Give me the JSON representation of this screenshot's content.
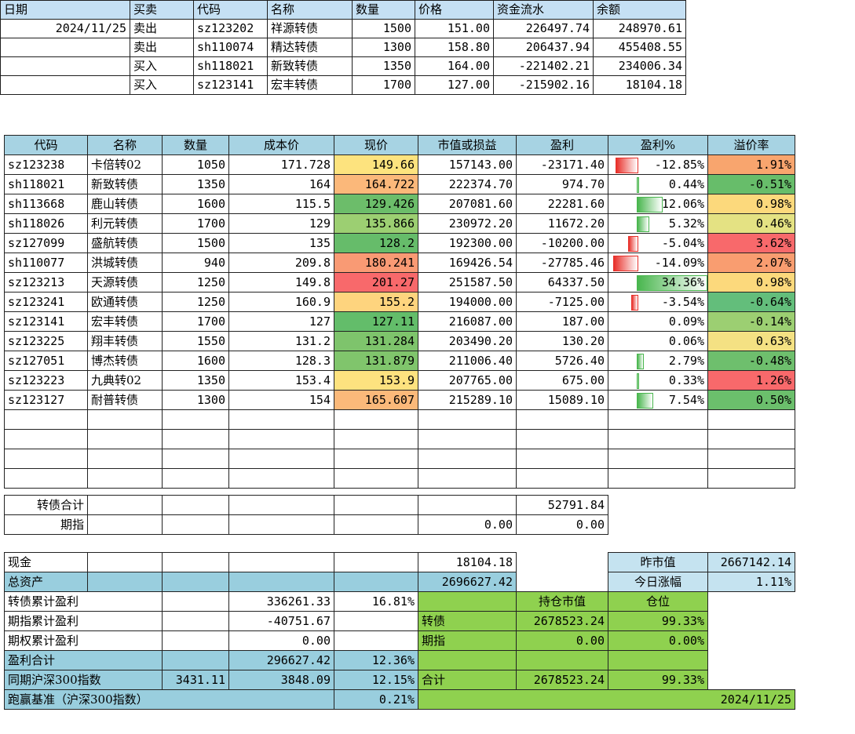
{
  "trade": {
    "headers": [
      "日期",
      "买卖",
      "代码",
      "名称",
      "数量",
      "价格",
      "资金流水",
      "余额"
    ],
    "rows": [
      {
        "date": "2024/11/25",
        "side": "卖出",
        "code": "sz123202",
        "name": "祥源转债",
        "qty": "1500",
        "price": "151.00",
        "flow": "226497.74",
        "balance": "248970.61"
      },
      {
        "date": "",
        "side": "卖出",
        "code": "sh110074",
        "name": "精达转债",
        "qty": "1300",
        "price": "158.80",
        "flow": "206437.94",
        "balance": "455408.55"
      },
      {
        "date": "",
        "side": "买入",
        "code": "sh118021",
        "name": "新致转债",
        "qty": "1350",
        "price": "164.00",
        "flow": "-221402.21",
        "balance": "234006.34"
      },
      {
        "date": "",
        "side": "买入",
        "code": "sz123141",
        "name": "宏丰转债",
        "qty": "1700",
        "price": "127.00",
        "flow": "-215902.16",
        "balance": "18104.18"
      }
    ]
  },
  "holdings": {
    "headers": [
      "代码",
      "名称",
      "数量",
      "成本价",
      "现价",
      "市值或损益",
      "盈利",
      "盈利%",
      "溢价率"
    ],
    "rows": [
      {
        "code": "sz123238",
        "name": "卡倍转02",
        "qty": "1050",
        "cost": "171.728",
        "price": "149.66",
        "mv": "157143.00",
        "profit": "-23171.40",
        "pct": "-12.85%",
        "pct_value": -12.85,
        "prem": "1.91%",
        "price_color": "#fde37e",
        "prem_color": "#f8a56e"
      },
      {
        "code": "sh118021",
        "name": "新致转债",
        "qty": "1350",
        "cost": "164",
        "price": "164.722",
        "mv": "222374.70",
        "profit": "974.70",
        "pct": "0.44%",
        "pct_value": 0.44,
        "prem": "-0.51%",
        "price_color": "#fbb87a",
        "prem_color": "#67bd6a"
      },
      {
        "code": "sh113668",
        "name": "鹿山转债",
        "qty": "1600",
        "cost": "115.5",
        "price": "129.426",
        "mv": "207081.60",
        "profit": "22281.60",
        "pct": "12.06%",
        "pct_value": 12.06,
        "prem": "0.98%",
        "price_color": "#6cbd6a",
        "prem_color": "#fcd97c"
      },
      {
        "code": "sh118026",
        "name": "利元转债",
        "qty": "1700",
        "cost": "129",
        "price": "135.866",
        "mv": "230972.20",
        "profit": "11672.20",
        "pct": "5.32%",
        "pct_value": 5.32,
        "prem": "0.46%",
        "price_color": "#9ccf72",
        "prem_color": "#e4e283"
      },
      {
        "code": "sz127099",
        "name": "盛航转债",
        "qty": "1500",
        "cost": "135",
        "price": "128.2",
        "mv": "192300.00",
        "profit": "-10200.00",
        "pct": "-5.04%",
        "pct_value": -5.04,
        "prem": "3.62%",
        "price_color": "#66bc6a",
        "prem_color": "#f8696b"
      },
      {
        "code": "sh110077",
        "name": "洪城转债",
        "qty": "940",
        "cost": "209.8",
        "price": "180.241",
        "mv": "169426.54",
        "profit": "-27785.46",
        "pct": "-14.09%",
        "pct_value": -14.09,
        "prem": "2.07%",
        "price_color": "#f99a74",
        "prem_color": "#f99d70"
      },
      {
        "code": "sz123213",
        "name": "天源转债",
        "qty": "1250",
        "cost": "149.8",
        "price": "201.27",
        "mv": "251587.50",
        "profit": "64337.50",
        "pct": "34.36%",
        "pct_value": 34.36,
        "prem": "0.98%",
        "price_color": "#f8696b",
        "prem_color": "#fcd97c"
      },
      {
        "code": "sz123241",
        "name": "欧通转债",
        "qty": "1250",
        "cost": "160.9",
        "price": "155.2",
        "mv": "194000.00",
        "profit": "-7125.00",
        "pct": "-3.54%",
        "pct_value": -3.54,
        "prem": "-0.64%",
        "price_color": "#fed47e",
        "prem_color": "#63be7b"
      },
      {
        "code": "sz123141",
        "name": "宏丰转债",
        "qty": "1700",
        "cost": "127",
        "price": "127.11",
        "mv": "216087.00",
        "profit": "187.00",
        "pct": "0.09%",
        "pct_value": 0.09,
        "prem": "-0.14%",
        "price_color": "#63bd6a",
        "prem_color": "#9ccf72"
      },
      {
        "code": "sz123225",
        "name": "翔丰转债",
        "qty": "1550",
        "cost": "131.2",
        "price": "131.284",
        "mv": "203490.20",
        "profit": "130.20",
        "pct": "0.06%",
        "pct_value": 0.06,
        "prem": "0.63%",
        "price_color": "#7ec46c",
        "prem_color": "#f4e183"
      },
      {
        "code": "sz127051",
        "name": "博杰转债",
        "qty": "1600",
        "cost": "128.3",
        "price": "131.879",
        "mv": "211006.40",
        "profit": "5726.40",
        "pct": "2.79%",
        "pct_value": 2.79,
        "prem": "-0.48%",
        "price_color": "#80c56c",
        "prem_color": "#6ebf6d"
      },
      {
        "code": "sz123223",
        "name": "九典转02",
        "qty": "1350",
        "cost": "153.4",
        "price": "153.9",
        "mv": "207765.00",
        "profit": "675.00",
        "pct": "0.33%",
        "pct_value": 0.33,
        "prem": "1.26%",
        "price_color": "#fde27f",
        "prem_color": "#f8696b"
      },
      {
        "code": "sz123127",
        "name": "耐普转债",
        "qty": "1300",
        "cost": "154",
        "price": "165.607",
        "mv": "215289.10",
        "profit": "15089.10",
        "pct": "7.54%",
        "pct_value": 7.54,
        "prem": "0.50%",
        "price_color": "#fbb97a",
        "prem_color": "#6bbf6c"
      }
    ],
    "cb_total_label": "转债合计",
    "cb_total_profit": "52791.84",
    "futures_label": "期指",
    "futures_mv": "0.00",
    "futures_profit": "0.00"
  },
  "summary": {
    "cash_label": "现金",
    "cash": "18104.18",
    "prev_mv_label": "昨市值",
    "prev_mv": "2667142.14",
    "total_assets_label": "总资产",
    "total_assets": "2696627.42",
    "today_change_label": "今日涨幅",
    "today_change": "1.11%",
    "cb_cum_label": "转债累计盈利",
    "cb_cum": "336261.33",
    "cb_cum_pct": "16.81%",
    "pos_mv_header": "持仓市值",
    "position_header": "仓位",
    "fut_cum_label": "期指累计盈利",
    "fut_cum": "-40751.67",
    "cb_label": "转债",
    "cb_mv": "2678523.24",
    "cb_pos": "99.33%",
    "opt_cum_label": "期权累计盈利",
    "opt_cum": "0.00",
    "fut_label": "期指",
    "fut_mv": "0.00",
    "fut_pos": "0.00%",
    "profit_total_label": "盈利合计",
    "profit_total": "296627.42",
    "profit_total_pct": "12.36%",
    "hs300_label": "同期沪深300指数",
    "hs300_start": "3431.11",
    "hs300_end": "3848.09",
    "hs300_pct": "12.15%",
    "total_label": "合计",
    "total_mv": "2678523.24",
    "total_pos": "99.33%",
    "beat_label": "跑赢基准（沪深300指数）",
    "beat_pct": "0.21%",
    "date": "2024/11/25"
  }
}
